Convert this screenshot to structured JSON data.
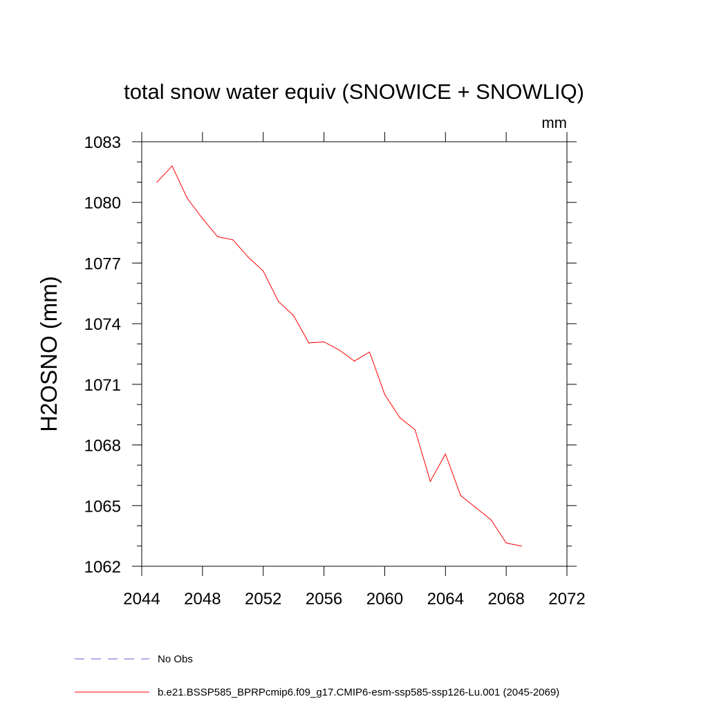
{
  "chart_data": {
    "type": "line",
    "title": "total snow water equiv (SNOWICE + SNOWLIQ)",
    "units": "mm",
    "ylabel": "H2OSNO  (mm)",
    "xlabel": "",
    "xlim": [
      2044,
      2072
    ],
    "ylim": [
      1062,
      1083
    ],
    "x_ticks": [
      2044,
      2048,
      2052,
      2056,
      2060,
      2064,
      2068,
      2072
    ],
    "y_ticks": [
      1062,
      1065,
      1068,
      1071,
      1074,
      1077,
      1080,
      1083
    ],
    "grid": false,
    "legend_position": "bottom-left",
    "series": [
      {
        "name": "No Obs",
        "color": "#6a5acd",
        "style": "dashed",
        "x": [],
        "values": []
      },
      {
        "name": "b.e21.BSSP585_BPRPcmip6.f09_g17.CMIP6-esm-ssp585-ssp126-Lu.001 (2045-2069)",
        "color": "#ff0000",
        "style": "solid",
        "x": [
          2045,
          2046,
          2047,
          2048,
          2049,
          2050,
          2051,
          2052,
          2053,
          2054,
          2055,
          2056,
          2057,
          2058,
          2059,
          2060,
          2061,
          2062,
          2063,
          2064,
          2065,
          2066,
          2067,
          2068,
          2069
        ],
        "values": [
          1081.0,
          1081.8,
          1080.2,
          1079.2,
          1078.3,
          1078.15,
          1077.3,
          1076.6,
          1075.1,
          1074.4,
          1073.05,
          1073.1,
          1072.7,
          1072.15,
          1072.6,
          1070.5,
          1069.35,
          1068.75,
          1066.2,
          1067.55,
          1065.5,
          1064.9,
          1064.3,
          1063.15,
          1063.0
        ]
      }
    ]
  }
}
